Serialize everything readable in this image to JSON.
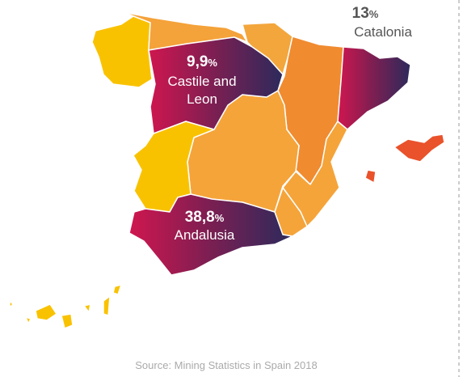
{
  "regions": [
    {
      "name": "Catalonia",
      "value": 13
    },
    {
      "name": "Castile and Leon",
      "value": 9.9,
      "value_label": "9,9"
    },
    {
      "name": "Andalusia",
      "value": 38.8,
      "value_label": "38,8"
    }
  ],
  "unit": "%",
  "source": "Source: Mining Statistics in Spain 2018"
}
